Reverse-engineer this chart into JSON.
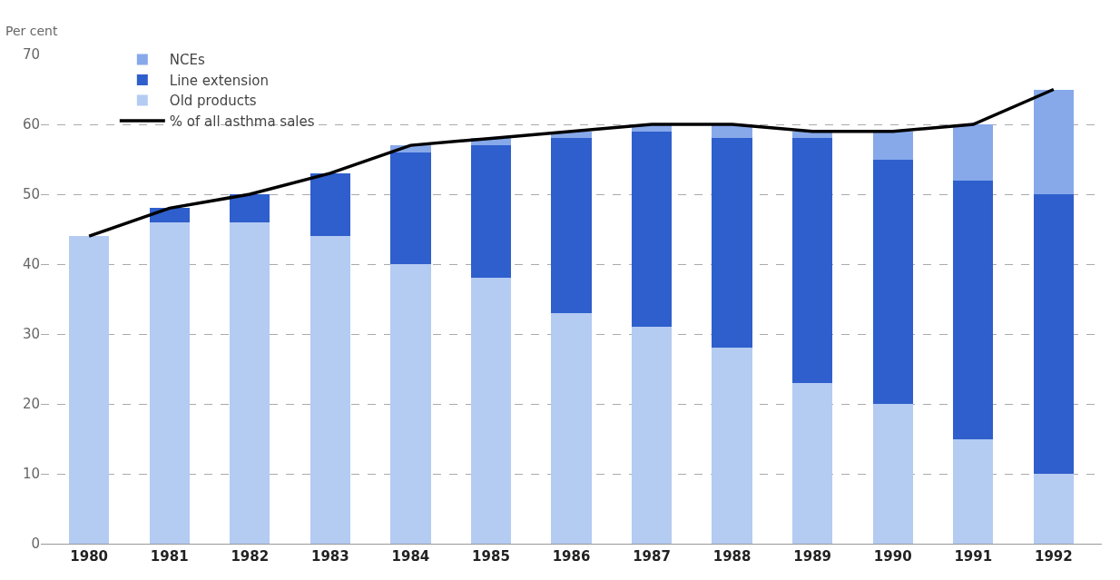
{
  "chart_data": {
    "type": "bar",
    "stacked": true,
    "ylabel": "Per cent",
    "categories": [
      "1980",
      "1981",
      "1982",
      "1983",
      "1984",
      "1985",
      "1986",
      "1987",
      "1988",
      "1989",
      "1990",
      "1991",
      "1992"
    ],
    "series": [
      {
        "name": "Old products",
        "color": "#b4cbf2",
        "values": [
          44,
          46,
          46,
          44,
          40,
          38,
          33,
          31,
          28,
          23,
          20,
          15,
          10
        ]
      },
      {
        "name": "Line extension",
        "color": "#2f5fcc",
        "values": [
          0,
          2,
          4,
          9,
          16,
          19,
          25,
          28,
          30,
          35,
          35,
          37,
          40
        ]
      },
      {
        "name": "NCEs",
        "color": "#87a9ea",
        "values": [
          0,
          0,
          0,
          0,
          1,
          1,
          1,
          1,
          2,
          1,
          4,
          8,
          15
        ]
      },
      {
        "name": "% of all asthma sales",
        "type": "line",
        "color": "#000000",
        "values": [
          44,
          48,
          50,
          53,
          57,
          58,
          59,
          60,
          60,
          59,
          59,
          60,
          65
        ]
      }
    ],
    "ylim": [
      0,
      70
    ],
    "yticks": [
      0,
      10,
      20,
      30,
      40,
      50,
      60,
      70
    ],
    "grid": "y",
    "legend": "top left",
    "marker": "none",
    "line_style": "solid"
  }
}
